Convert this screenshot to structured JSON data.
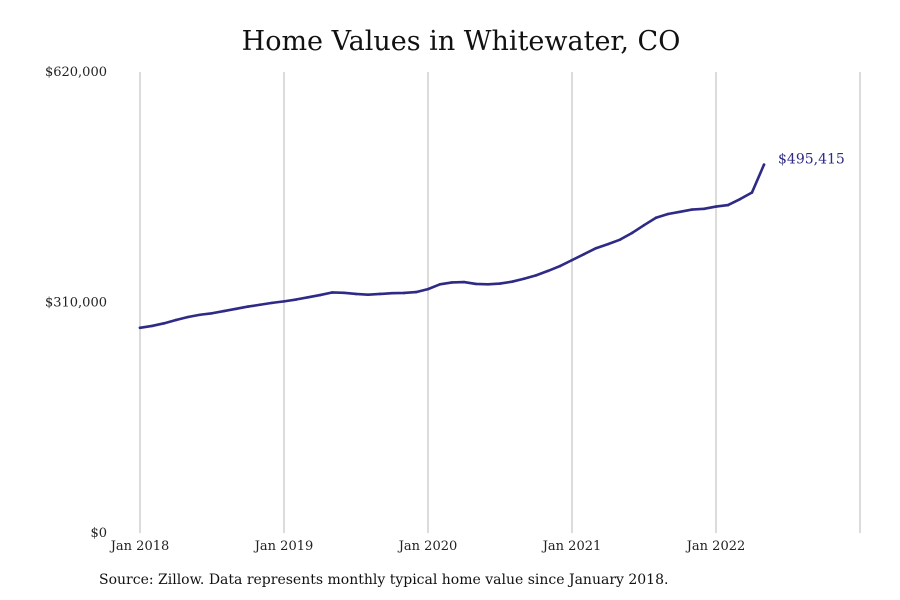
{
  "chart_data": {
    "type": "line",
    "title": "Home Values in Whitewater, CO",
    "xlabel": "",
    "ylabel": "",
    "x_tick_labels": [
      "Jan 2018",
      "Jan 2019",
      "Jan 2020",
      "Jan 2021",
      "Jan 2022"
    ],
    "y_tick_labels": [
      "$0",
      "$310,000",
      "$620,000"
    ],
    "y_ticks": [
      0,
      310000,
      620000
    ],
    "ylim": [
      0,
      620000
    ],
    "xlim": [
      "2018-01",
      "2023-02"
    ],
    "grid": "vertical",
    "line_color": "#2e2a86",
    "end_label": "$495,415",
    "series": [
      {
        "x": [
          "2018-01",
          "2018-02",
          "2018-03",
          "2018-04",
          "2018-05",
          "2018-06",
          "2018-07",
          "2018-08",
          "2018-09",
          "2018-10",
          "2018-11",
          "2018-12",
          "2019-01",
          "2019-02",
          "2019-03",
          "2019-04",
          "2019-05",
          "2019-06",
          "2019-07",
          "2019-08",
          "2019-09",
          "2019-10",
          "2019-11",
          "2019-12",
          "2020-01",
          "2020-02",
          "2020-03",
          "2020-04",
          "2020-05",
          "2020-06",
          "2020-07",
          "2020-08",
          "2020-09",
          "2020-10",
          "2020-11",
          "2020-12",
          "2021-01",
          "2021-02",
          "2021-03",
          "2021-04",
          "2021-05",
          "2021-06",
          "2021-07",
          "2021-08",
          "2021-09",
          "2021-10",
          "2021-11",
          "2021-12",
          "2022-01",
          "2022-02",
          "2022-03",
          "2022-04",
          "2022-05"
        ],
        "values": [
          276000,
          278500,
          282000,
          286500,
          290500,
          293500,
          295500,
          298500,
          301500,
          304500,
          307000,
          309500,
          311500,
          314000,
          317000,
          320000,
          323500,
          323000,
          321500,
          320500,
          321500,
          322500,
          322800,
          324000,
          328000,
          334500,
          337000,
          337500,
          335000,
          334500,
          335500,
          338000,
          342000,
          346500,
          352500,
          359000,
          367000,
          375000,
          383000,
          388500,
          394500,
          403500,
          414000,
          424000,
          429000,
          432000,
          435000,
          436000,
          439000,
          441000,
          449000,
          458000,
          495415
        ]
      }
    ]
  },
  "source_note": "Source: Zillow. Data represents monthly typical home value since January 2018."
}
